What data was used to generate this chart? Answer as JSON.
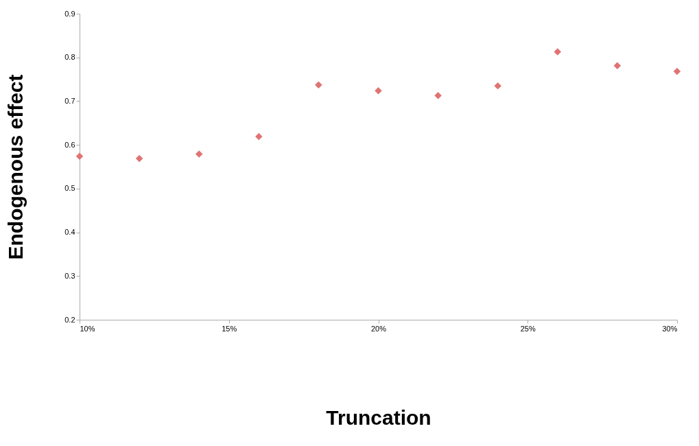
{
  "chart_data": {
    "type": "scatter",
    "xlabel": "Truncation",
    "ylabel": "Endogenous effect",
    "x": [
      10,
      12,
      14,
      16,
      18,
      20,
      22,
      24,
      26,
      28,
      30
    ],
    "series": [
      {
        "color": "#e07373",
        "values": [
          0.574,
          0.569,
          0.579,
          0.619,
          0.737,
          0.724,
          0.713,
          0.735,
          0.813,
          0.781,
          0.768
        ]
      }
    ],
    "xlim": [
      10,
      30
    ],
    "xticks": [
      {
        "value": 10,
        "label": "10%"
      },
      {
        "value": 15,
        "label": "15%"
      },
      {
        "value": 20,
        "label": "20%"
      },
      {
        "value": 25,
        "label": "25%"
      },
      {
        "value": 30,
        "label": "30%"
      }
    ],
    "ylim": [
      0.2,
      0.9
    ],
    "yticks": [
      0.2,
      0.3,
      0.4,
      0.5,
      0.6,
      0.7,
      0.8,
      0.9
    ],
    "grid": false,
    "marker": "diamond",
    "legend": false
  }
}
